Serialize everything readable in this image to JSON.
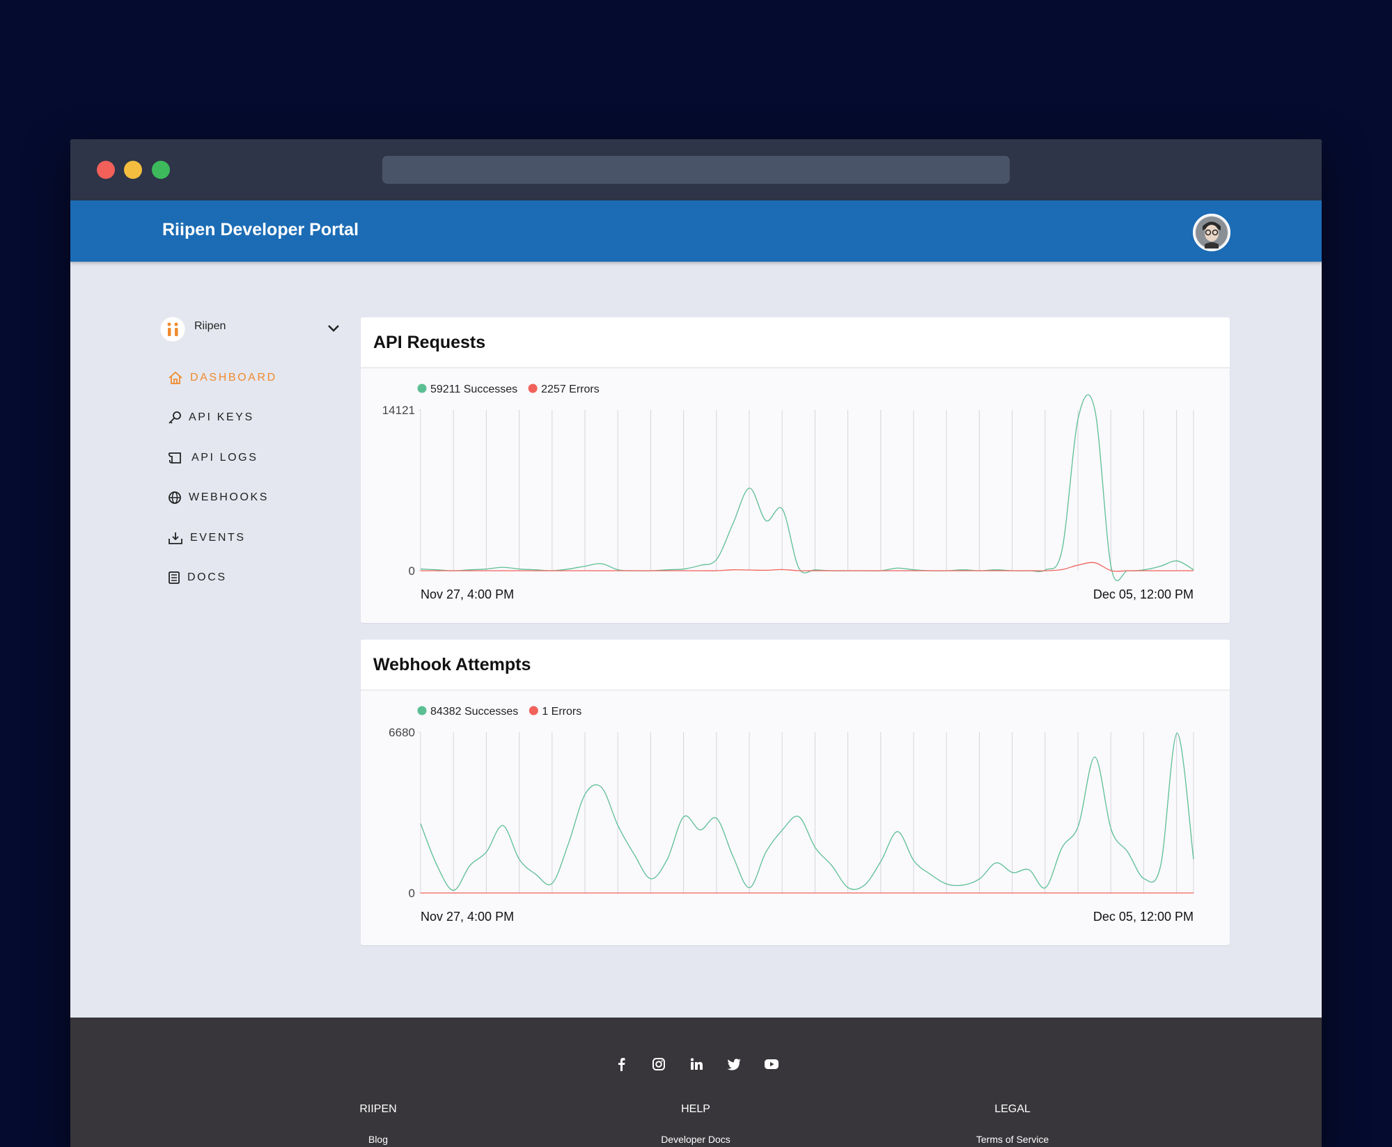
{
  "header": {
    "title": "Riipen Developer Portal"
  },
  "sidebar": {
    "org": "Riipen",
    "nav": [
      "DASHBOARD",
      "API KEYS",
      "API LOGS",
      "WEBHOOKS",
      "EVENTS",
      "DOCS"
    ]
  },
  "chart_data": [
    {
      "type": "line",
      "title": "API Requests",
      "categories": [
        "Nov 27, 4:00 PM",
        null,
        null,
        null,
        null,
        null,
        null,
        null,
        null,
        null,
        null,
        null,
        null,
        null,
        null,
        null,
        null,
        null,
        null,
        null,
        null,
        null,
        null,
        null,
        null,
        null,
        null,
        null,
        null,
        null,
        null,
        null,
        null,
        null,
        null,
        null,
        null,
        null,
        null,
        null,
        null,
        null,
        null,
        null,
        null,
        null,
        null,
        "Dec 05, 12:00 PM"
      ],
      "series": [
        {
          "name": "59211 Successes",
          "color": "#5cbf94",
          "values": [
            156,
            80,
            0,
            80,
            150,
            300,
            150,
            80,
            0,
            150,
            400,
            620,
            80,
            0,
            0,
            80,
            150,
            470,
            1000,
            4150,
            7260,
            4400,
            5400,
            230,
            80,
            0,
            0,
            0,
            0,
            230,
            80,
            0,
            0,
            80,
            0,
            80,
            0,
            0,
            80,
            1800,
            13500,
            14121,
            230,
            0,
            80,
            400,
            860,
            80
          ]
        },
        {
          "name": "2257 Errors",
          "color": "#f0625a",
          "values": [
            0,
            0,
            0,
            0,
            0,
            0,
            0,
            0,
            0,
            0,
            0,
            0,
            0,
            0,
            0,
            0,
            0,
            0,
            0,
            80,
            60,
            40,
            100,
            0,
            0,
            0,
            0,
            0,
            0,
            0,
            0,
            0,
            0,
            0,
            0,
            0,
            0,
            0,
            0,
            100,
            500,
            700,
            0,
            0,
            0,
            0,
            0,
            0
          ]
        }
      ],
      "ylim": [
        0,
        14121
      ],
      "yticks": [
        0,
        14121
      ]
    },
    {
      "type": "line",
      "title": "Webhook Attempts",
      "categories": [
        "Nov 27, 4:00 PM",
        null,
        null,
        null,
        null,
        null,
        null,
        null,
        null,
        null,
        null,
        null,
        null,
        null,
        null,
        null,
        null,
        null,
        null,
        null,
        null,
        null,
        null,
        null,
        null,
        null,
        null,
        null,
        null,
        null,
        null,
        null,
        null,
        null,
        null,
        null,
        null,
        null,
        null,
        null,
        null,
        null,
        null,
        null,
        null,
        null,
        null,
        "Dec 05, 12:00 PM"
      ],
      "series": [
        {
          "name": "84382 Successes",
          "color": "#5cbf94",
          "values": [
            2880,
            1140,
            110,
            1140,
            1700,
            2800,
            1400,
            775,
            400,
            2070,
            4100,
            4390,
            2800,
            1590,
            590,
            1400,
            3170,
            2620,
            3100,
            1510,
            220,
            1700,
            2620,
            3170,
            1880,
            1140,
            220,
            330,
            1330,
            2550,
            1330,
            775,
            370,
            330,
            590,
            1250,
            850,
            960,
            220,
            1880,
            2800,
            5650,
            2620,
            1700,
            590,
            1140,
            6640,
            1400
          ]
        },
        {
          "name": "1 Errors",
          "color": "#f0625a",
          "values": [
            0,
            0,
            0,
            0,
            0,
            0,
            0,
            0,
            0,
            0,
            0,
            0,
            0,
            0,
            0,
            0,
            0,
            0,
            0,
            0,
            0,
            0,
            0,
            0,
            0,
            0,
            0,
            0,
            0,
            0,
            0,
            0,
            0,
            0,
            0,
            0,
            0,
            0,
            0,
            0,
            0,
            0,
            0,
            0,
            0,
            1,
            0,
            0
          ]
        }
      ],
      "ylim": [
        0,
        6680
      ],
      "yticks": [
        0,
        6680
      ]
    }
  ],
  "footer": {
    "columns": [
      {
        "heading": "RIIPEN",
        "links": [
          "Blog"
        ]
      },
      {
        "heading": "HELP",
        "links": [
          "Developer Docs"
        ]
      },
      {
        "heading": "LEGAL",
        "links": [
          "Terms of Service"
        ]
      }
    ]
  }
}
